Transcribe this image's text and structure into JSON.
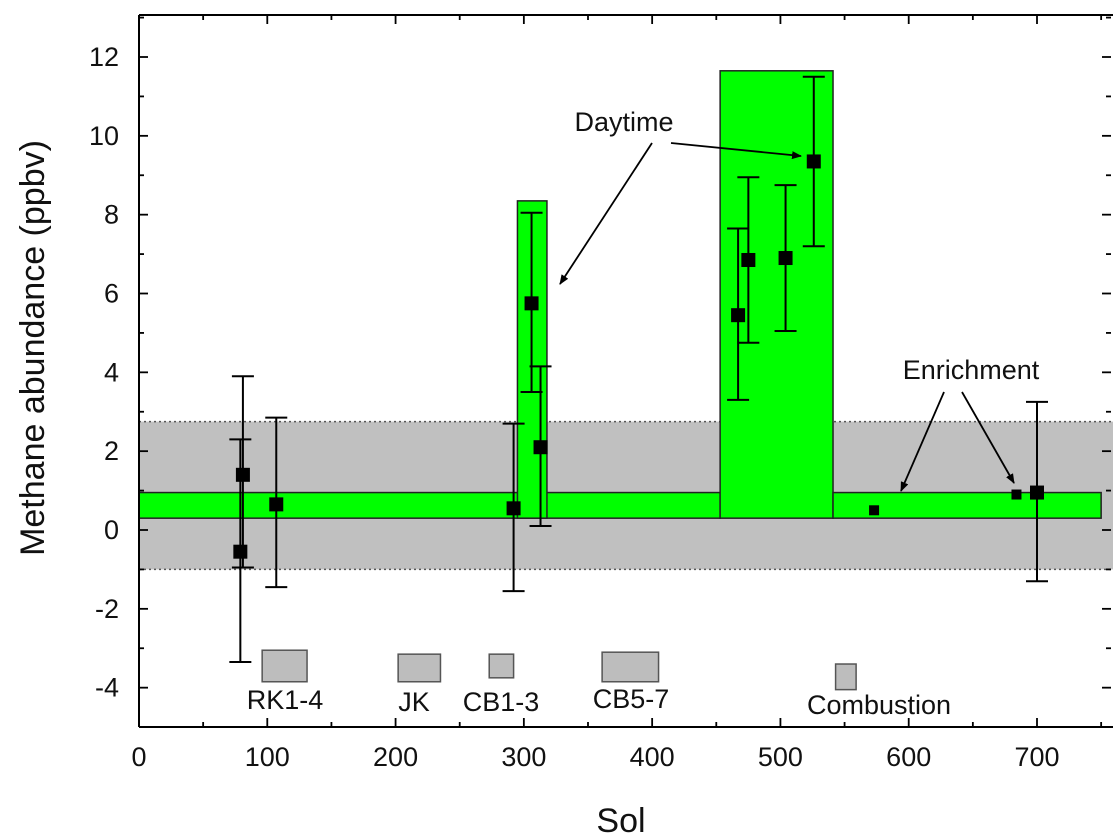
{
  "chart_data": {
    "type": "scatter",
    "title": "",
    "xlabel": "Sol",
    "ylabel": "Methane abundance (ppbv)",
    "xlim": [
      0,
      750
    ],
    "ylim": [
      -5,
      13
    ],
    "x_ticks": [
      0,
      100,
      200,
      300,
      400,
      500,
      600,
      700
    ],
    "x_tick_labels": [
      "0",
      "100",
      "200",
      "300",
      "400",
      "500",
      "600",
      "700"
    ],
    "y_ticks": [
      12,
      10,
      8,
      6,
      4,
      2,
      0,
      -2,
      -4
    ],
    "y_tick_labels": [
      "12",
      "10",
      "8",
      "6",
      "4",
      "2",
      "0",
      "-2",
      "-4"
    ],
    "grid": false,
    "colors": {
      "green": "#00ff00",
      "gray_band": "#c0c0c0",
      "marker": "#000000",
      "small_box": "#bdbdbd"
    },
    "background_band": {
      "y_low": -1.0,
      "y_high": 2.75
    },
    "green_regions": [
      {
        "x_start": 0,
        "x_end": 453,
        "y_low": 0.3,
        "y_high": 0.95
      },
      {
        "x_start": 295,
        "x_end": 318,
        "y_low": 0.3,
        "y_high": 8.35
      },
      {
        "x_start": 453,
        "x_end": 541,
        "y_low": 0.3,
        "y_high": 11.65
      },
      {
        "x_start": 541,
        "x_end": 750,
        "y_low": 0.3,
        "y_high": 0.95
      }
    ],
    "series": [
      {
        "marker": "square",
        "points": [
          {
            "x": 79,
            "y": -0.55,
            "err_low": -3.35,
            "err_high": 2.3
          },
          {
            "x": 81,
            "y": 1.4,
            "err_low": -0.95,
            "err_high": 3.9
          },
          {
            "x": 107,
            "y": 0.65,
            "err_low": -1.45,
            "err_high": 2.85
          },
          {
            "x": 292,
            "y": 0.55,
            "err_low": -1.55,
            "err_high": 2.7
          },
          {
            "x": 306,
            "y": 5.75,
            "err_low": 3.5,
            "err_high": 8.05
          },
          {
            "x": 313,
            "y": 2.1,
            "err_low": 0.1,
            "err_high": 4.15
          },
          {
            "x": 467,
            "y": 5.45,
            "err_low": 3.3,
            "err_high": 7.65
          },
          {
            "x": 475,
            "y": 6.85,
            "err_low": 4.75,
            "err_high": 8.95
          },
          {
            "x": 504,
            "y": 6.9,
            "err_low": 5.05,
            "err_high": 8.75
          },
          {
            "x": 526,
            "y": 9.35,
            "err_low": 7.2,
            "err_high": 11.5
          },
          {
            "x": 573,
            "y": 0.5
          },
          {
            "x": 684,
            "y": 0.9
          },
          {
            "x": 700,
            "y": 0.95,
            "err_low": -1.3,
            "err_high": 3.25
          }
        ]
      }
    ],
    "activity_boxes": [
      {
        "label": "RK1-4",
        "x_start": 96,
        "x_end": 131,
        "y_low": -3.85,
        "y_high": -3.05
      },
      {
        "label": "JK",
        "x_start": 202,
        "x_end": 235,
        "y_low": -3.85,
        "y_high": -3.15
      },
      {
        "label": "CB1-3",
        "x_start": 273,
        "x_end": 292,
        "y_low": -3.75,
        "y_high": -3.15
      },
      {
        "label": "CB5-7",
        "x_start": 361,
        "x_end": 405,
        "y_low": -3.85,
        "y_high": -3.1
      },
      {
        "label": "Combustion",
        "x_start": 543,
        "x_end": 559,
        "y_low": -4.05,
        "y_high": -3.4
      }
    ],
    "annotations": [
      {
        "text": "Daytime",
        "x": 567,
        "y": 10.25
      },
      {
        "text": "Enrichment",
        "x": 665,
        "y": 4.0
      }
    ]
  }
}
